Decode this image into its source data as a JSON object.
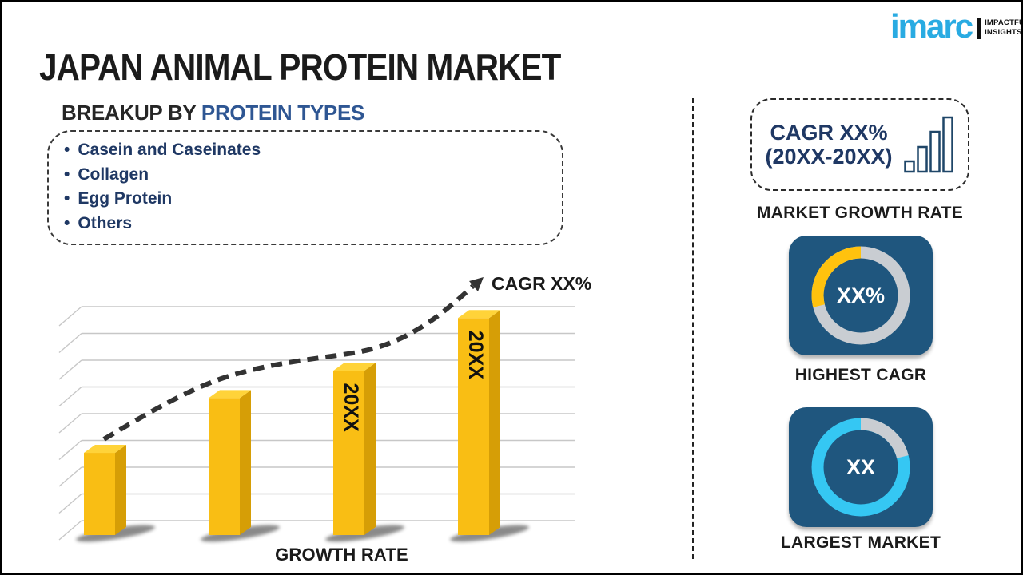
{
  "page": {
    "title": "JAPAN ANIMAL PROTEIN MARKET",
    "background": "#ffffff",
    "border_color": "#000000"
  },
  "logo": {
    "brand": "imarc",
    "tagline_line1": "IMPACTFUL",
    "tagline_line2": "INSIGHTS",
    "brand_color": "#29ABE2"
  },
  "breakup": {
    "heading_prefix": "BREAKUP BY ",
    "heading_highlight": "PROTEIN TYPES",
    "items": [
      "Casein and Caseinates",
      "Collagen",
      "Egg Protein",
      "Others"
    ],
    "text_color": "#1F3864",
    "highlight_color": "#2E5693"
  },
  "chart_data": {
    "type": "bar",
    "title": "",
    "xlabel": "GROWTH RATE",
    "ylabel": "",
    "categories": [
      "",
      "",
      "20XX",
      "20XX"
    ],
    "values": [
      36,
      60,
      72,
      95
    ],
    "value_note": "relative bar heights in percent of plot height; chart uses placeholder values",
    "annotation": "CAGR XX%",
    "trend": "dashed-arrow-rising",
    "gridlines": 9,
    "grid_color": "#c7c7c7",
    "bar_color": "#F9BE14",
    "bar_side_color": "#D69E06",
    "bar_top_color": "#FFD339",
    "trend_color": "#333333",
    "bar_label_color": "#111111"
  },
  "sidebar": {
    "growth_card": {
      "line1": "CAGR XX%",
      "line2": "(20XX-20XX)",
      "caption": "MARKET GROWTH RATE",
      "icon": "bar-chart-icon",
      "icon_color": "#1F4668",
      "text_color": "#1F3864"
    },
    "highest_cagr": {
      "value": "XX%",
      "caption": "HIGHEST CAGR",
      "icon": "donut-chart-icon",
      "arc_degrees": 104,
      "arc_direction": "ccw",
      "arc_color": "#FFC20E",
      "ring_color": "#C9CDD2"
    },
    "largest_market": {
      "value": "XX",
      "caption": "LARGEST MARKET",
      "icon": "donut-chart-icon",
      "arc_degrees": 76,
      "arc_direction": "cw",
      "arc_color": "#C9CDD2",
      "ring_color": "#35C7F3"
    },
    "card_bg": "#1F567E"
  }
}
